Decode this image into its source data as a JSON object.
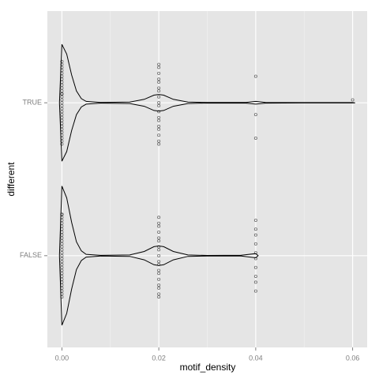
{
  "chart_data": {
    "type": "violin",
    "x_label": "motif_density",
    "y_label": "different",
    "xlim": [
      -0.003,
      0.063
    ],
    "xticks": [
      {
        "value": 0,
        "label": "0.00"
      },
      {
        "value": 0.02,
        "label": "0.02"
      },
      {
        "value": 0.04,
        "label": "0.04"
      },
      {
        "value": 0.06,
        "label": "0.06"
      }
    ],
    "xminor": [
      0.01,
      0.03,
      0.05
    ],
    "grid": true,
    "groups": [
      {
        "name": "FALSE",
        "color": "#000000",
        "values": [
          0,
          0,
          0,
          0,
          0,
          0,
          0,
          0,
          0,
          0,
          0,
          0,
          0,
          0,
          0,
          0,
          0,
          0,
          0,
          0,
          0,
          0,
          0,
          0,
          0,
          0,
          0,
          0,
          0,
          0,
          0.02,
          0.02,
          0.02,
          0.02,
          0.02,
          0.02,
          0.02,
          0.02,
          0.02,
          0.02,
          0.02,
          0.02,
          0.02,
          0.02,
          0.02,
          0.02,
          0.02,
          0.02,
          0.04,
          0.04,
          0.04,
          0.04,
          0.04,
          0.04,
          0.04,
          0.04,
          0.04,
          0.04
        ],
        "density": {
          "x": [
            -0.0005,
            0,
            0.001,
            0.002,
            0.003,
            0.004,
            0.005,
            0.008,
            0.014,
            0.017,
            0.019,
            0.02,
            0.021,
            0.023,
            0.026,
            0.03,
            0.037,
            0.04,
            0.0405
          ],
          "width": [
            0,
            1,
            0.83,
            0.48,
            0.2,
            0.07,
            0.02,
            0.005,
            0.01,
            0.06,
            0.13,
            0.14,
            0.13,
            0.06,
            0.01,
            0.004,
            0.006,
            0.03,
            0
          ]
        }
      },
      {
        "name": "TRUE",
        "color": "#000000",
        "values": [
          0,
          0,
          0,
          0,
          0,
          0,
          0,
          0,
          0,
          0,
          0,
          0,
          0,
          0,
          0,
          0,
          0,
          0,
          0,
          0,
          0,
          0,
          0,
          0,
          0,
          0,
          0,
          0,
          0,
          0,
          0.02,
          0.02,
          0.02,
          0.02,
          0.02,
          0.02,
          0.02,
          0.02,
          0.02,
          0.02,
          0.02,
          0.02,
          0.02,
          0.02,
          0.02,
          0.02,
          0.02,
          0.02,
          0.04,
          0.04,
          0.04,
          0.06
        ],
        "density": {
          "x": [
            -0.0005,
            0,
            0.001,
            0.002,
            0.003,
            0.004,
            0.005,
            0.008,
            0.014,
            0.017,
            0.019,
            0.02,
            0.021,
            0.023,
            0.026,
            0.03,
            0.038,
            0.04,
            0.042,
            0.05,
            0.06,
            0.0605
          ],
          "width": [
            0,
            0.84,
            0.7,
            0.4,
            0.17,
            0.06,
            0.02,
            0.005,
            0.01,
            0.05,
            0.11,
            0.12,
            0.11,
            0.05,
            0.01,
            0.004,
            0.005,
            0.02,
            0.005,
            0.003,
            0.003,
            0
          ]
        }
      }
    ]
  }
}
